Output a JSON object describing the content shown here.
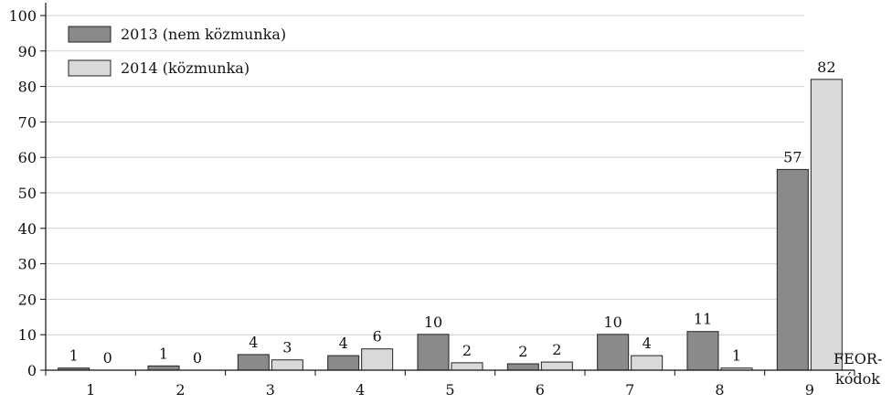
{
  "chart_data": {
    "type": "bar",
    "title": "",
    "xlabel": [
      "FEOR-",
      "kódok"
    ],
    "ylabel": "",
    "categories": [
      "1",
      "2",
      "3",
      "4",
      "5",
      "6",
      "7",
      "8",
      "9"
    ],
    "series": [
      {
        "name": "2013 (nem közmunka)",
        "color": "#8a8a8a",
        "values": [
          0.6,
          1.2,
          4.4,
          4.1,
          10.1,
          1.8,
          10.1,
          10.9,
          56.6
        ],
        "labels": [
          "1",
          "1",
          "4",
          "4",
          "10",
          "2",
          "10",
          "11",
          "57"
        ]
      },
      {
        "name": "2014 (közmunka)",
        "color": "#d9d9d9",
        "values": [
          0,
          0,
          2.9,
          6.0,
          2.1,
          2.3,
          4.1,
          0.6,
          82.0
        ],
        "labels": [
          "0",
          "0",
          "3",
          "6",
          "2",
          "2",
          "4",
          "1",
          "82"
        ]
      }
    ],
    "ylim": [
      0,
      100
    ],
    "yticks": [
      "0",
      "10",
      "20",
      "30",
      "40",
      "50",
      "60",
      "70",
      "80",
      "90",
      "100"
    ],
    "grid": true,
    "legend": "top-left"
  }
}
